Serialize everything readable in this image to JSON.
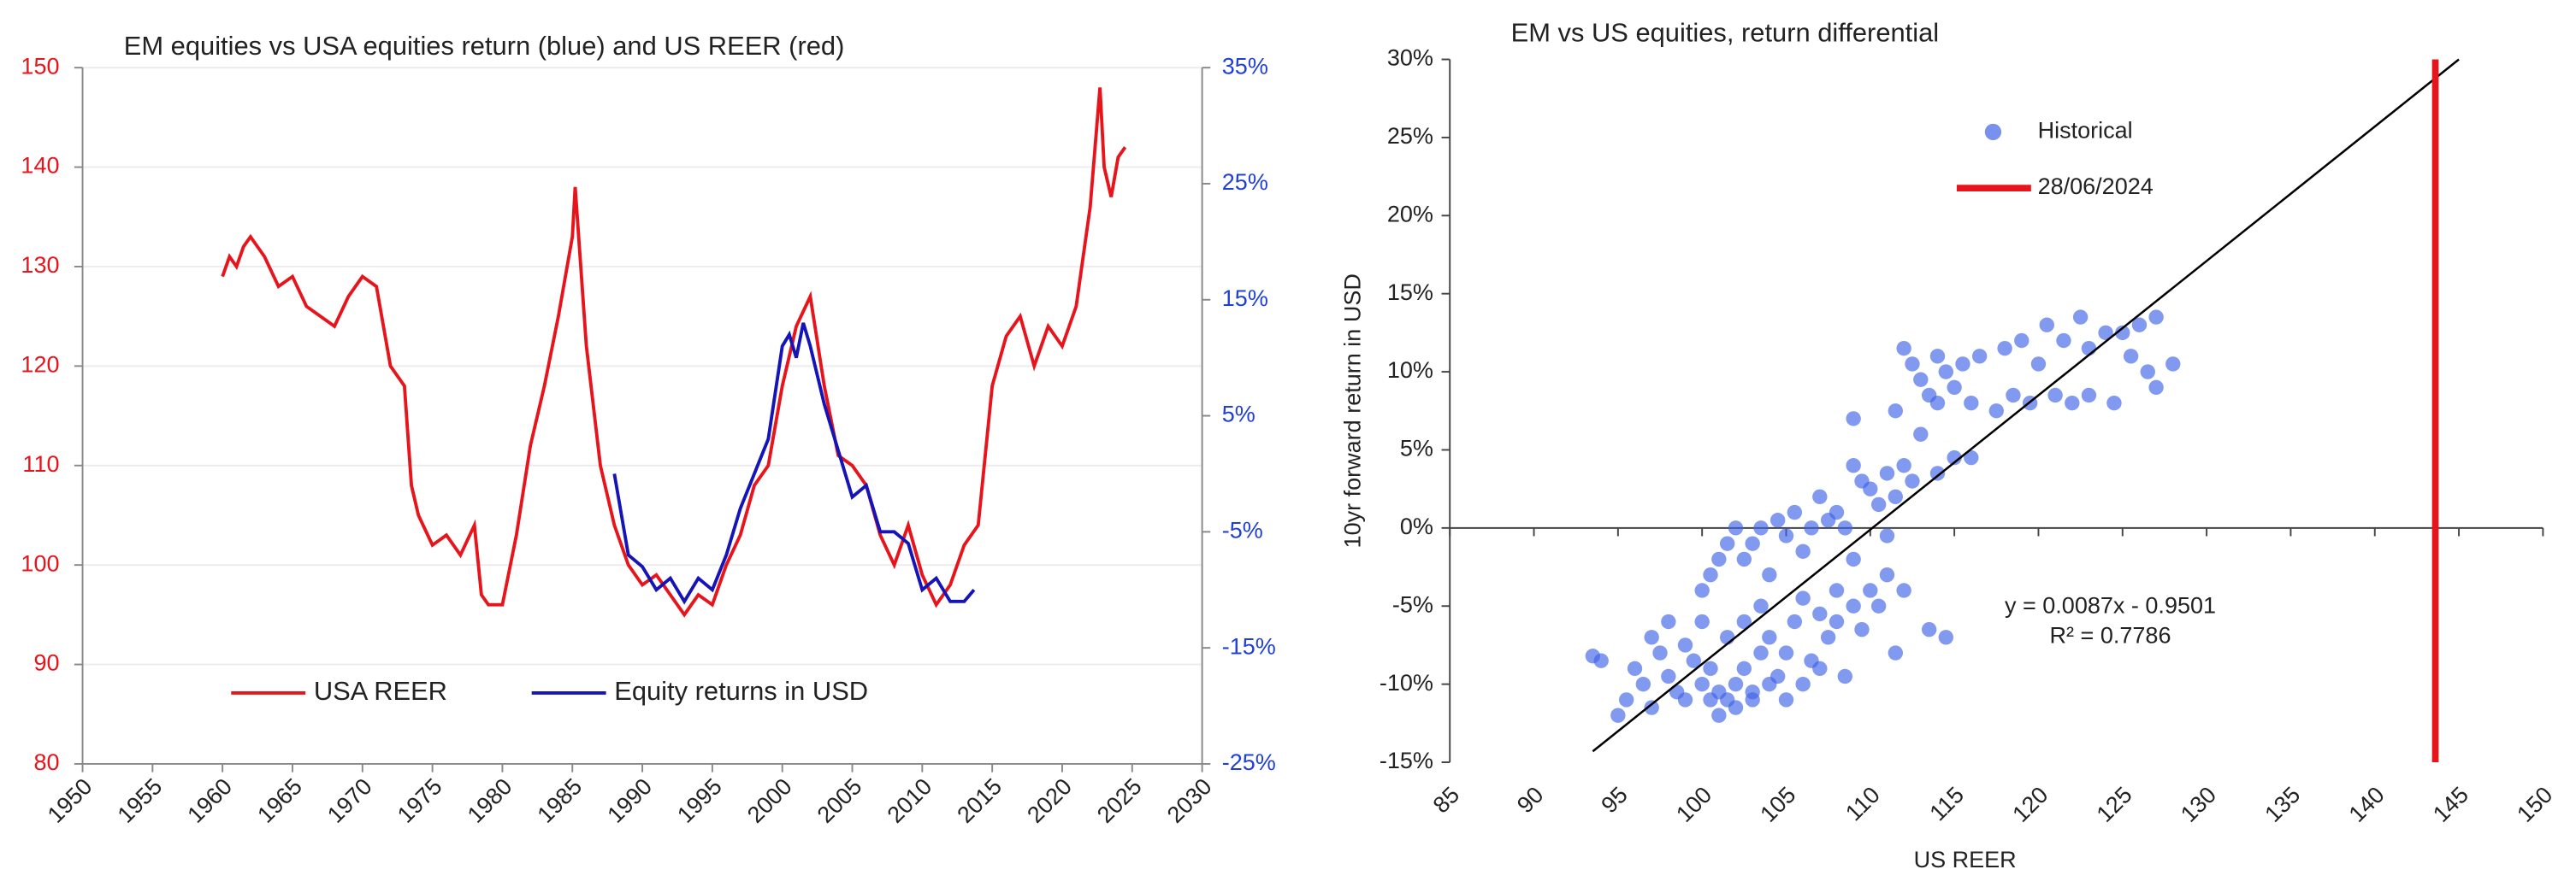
{
  "chart_data": [
    {
      "type": "line",
      "title": "EM equities vs USA equities return (blue) and US REER (red)",
      "xlim": [
        1950,
        2030
      ],
      "xticks": [
        1950,
        1955,
        1960,
        1965,
        1970,
        1975,
        1980,
        1985,
        1990,
        1995,
        2000,
        2005,
        2010,
        2015,
        2020,
        2025,
        2030
      ],
      "ylim": [
        80,
        150
      ],
      "yticks": [
        80,
        90,
        100,
        110,
        120,
        130,
        140,
        150
      ],
      "y2lim": [
        -25,
        35
      ],
      "y2ticks": [
        {
          "value": -25,
          "label": "-25%"
        },
        {
          "value": -15,
          "label": "-15%"
        },
        {
          "value": -5,
          "label": "-5%"
        },
        {
          "value": 5,
          "label": "5%"
        },
        {
          "value": 15,
          "label": "15%"
        },
        {
          "value": 25,
          "label": "25%"
        },
        {
          "value": 35,
          "label": "35%"
        }
      ],
      "grid": true,
      "series": [
        {
          "name": "USA REER",
          "color": "#e8141b",
          "axis": "y",
          "x": [
            1960,
            1960.5,
            1961,
            1961.5,
            1962,
            1963,
            1964,
            1965,
            1966,
            1967,
            1968,
            1969,
            1970,
            1971,
            1972,
            1973,
            1973.5,
            1974,
            1975,
            1976,
            1977,
            1978,
            1978.5,
            1979,
            1980,
            1981,
            1982,
            1983,
            1984,
            1985,
            1985.2,
            1986,
            1987,
            1988,
            1989,
            1990,
            1991,
            1992,
            1993,
            1994,
            1995,
            1996,
            1997,
            1998,
            1999,
            2000,
            2001,
            2002,
            2003,
            2004,
            2005,
            2006,
            2007,
            2008,
            2009,
            2010,
            2011,
            2012,
            2013,
            2014,
            2015,
            2016,
            2017,
            2018,
            2019,
            2020,
            2021,
            2022,
            2022.7,
            2023,
            2023.5,
            2024,
            2024.5
          ],
          "values": [
            129,
            131,
            130,
            132,
            133,
            131,
            128,
            129,
            126,
            125,
            124,
            127,
            129,
            128,
            120,
            118,
            108,
            105,
            102,
            103,
            101,
            104,
            97,
            96,
            96,
            103,
            112,
            118,
            125,
            133,
            138,
            122,
            110,
            104,
            100,
            98,
            99,
            97,
            95,
            97,
            96,
            100,
            103,
            108,
            110,
            118,
            124,
            127,
            118,
            111,
            110,
            108,
            103,
            100,
            104,
            99,
            96,
            98,
            102,
            104,
            118,
            123,
            125,
            120,
            124,
            122,
            126,
            136,
            148,
            140,
            137,
            141,
            142
          ]
        },
        {
          "name": "Equity returns in USD",
          "color": "#1414b8",
          "axis": "y2",
          "x": [
            1988,
            1989,
            1990,
            1991,
            1992,
            1993,
            1994,
            1995,
            1996,
            1997,
            1998,
            1999,
            2000,
            2000.5,
            2001,
            2001.5,
            2002,
            2003,
            2004,
            2005,
            2006,
            2007,
            2008,
            2009,
            2010,
            2011,
            2012,
            2013,
            2013.7
          ],
          "values": [
            0,
            -7,
            -8,
            -10,
            -9,
            -11,
            -9,
            -10,
            -7,
            -3,
            0,
            3,
            11,
            12,
            10,
            13,
            11,
            6,
            2,
            -2,
            -1,
            -5,
            -5,
            -6,
            -10,
            -9,
            -11,
            -11,
            -10
          ]
        }
      ]
    },
    {
      "type": "scatter",
      "title": "EM vs US equities, return differential",
      "x_label": "US REER",
      "y_label": "10yr forward return in USD",
      "xlim": [
        85,
        150
      ],
      "xticks": [
        85,
        90,
        95,
        100,
        105,
        110,
        115,
        120,
        125,
        130,
        135,
        140,
        145,
        150
      ],
      "ylim": [
        -15,
        30
      ],
      "yticks": [
        {
          "value": -15,
          "label": "-15%"
        },
        {
          "value": -10,
          "label": "-10%"
        },
        {
          "value": -5,
          "label": "-5%"
        },
        {
          "value": 0,
          "label": "0%"
        },
        {
          "value": 5,
          "label": "5%"
        },
        {
          "value": 10,
          "label": "10%"
        },
        {
          "value": 15,
          "label": "15%"
        },
        {
          "value": 20,
          "label": "20%"
        },
        {
          "value": 25,
          "label": "25%"
        },
        {
          "value": 30,
          "label": "30%"
        }
      ],
      "series": [
        {
          "name": "Historical",
          "color": "#3f63e8",
          "x": [
            93.5,
            94,
            95,
            95.5,
            96,
            96.5,
            97,
            97,
            97.5,
            98,
            98,
            98.5,
            99,
            99,
            99.5,
            100,
            100,
            100.5,
            100.5,
            101,
            101,
            101.5,
            101.5,
            102,
            102,
            102.5,
            102.5,
            103,
            103,
            103.5,
            103.5,
            104,
            104,
            104.5,
            105,
            105,
            105.5,
            106,
            106,
            106.5,
            107,
            107,
            107.5,
            108,
            108,
            108.5,
            109,
            109.5,
            110,
            110.5,
            111,
            111.5,
            112,
            113.5,
            114.5,
            100,
            100.5,
            101,
            101.5,
            102,
            102.5,
            103,
            103.5,
            104,
            104.5,
            105,
            105.5,
            106,
            106.5,
            107,
            107.5,
            108,
            108.5,
            109,
            109,
            109.5,
            110,
            110.5,
            111,
            111,
            111.5,
            112,
            112.5,
            113,
            114,
            115,
            116,
            109,
            111.5,
            112,
            112.5,
            113,
            113.5,
            114,
            114,
            114.5,
            115,
            115.5,
            116,
            116.5,
            117.5,
            118,
            118.5,
            119,
            119.5,
            120,
            120.5,
            121,
            121.5,
            122,
            122.5,
            123,
            123,
            124,
            124.5,
            125,
            125.5,
            126,
            126.5,
            127,
            127,
            128
          ],
          "values": [
            -8.2,
            -8.5,
            -12,
            -11,
            -9,
            -10,
            -7,
            -11.5,
            -8,
            -6,
            -9.5,
            -10.5,
            -7.5,
            -11,
            -8.5,
            -6,
            -10,
            -11,
            -9,
            -10.5,
            -12,
            -11,
            -7,
            -10,
            -11.5,
            -9,
            -6,
            -10.5,
            -11,
            -8,
            -5,
            -10,
            -7,
            -9.5,
            -11,
            -8,
            -6,
            -10,
            -4.5,
            -8.5,
            -9,
            -5.5,
            -7,
            -4,
            -6,
            -9.5,
            -5,
            -6.5,
            -4,
            -5,
            -3,
            -8,
            -4,
            -6.5,
            -7,
            -4,
            -3,
            -2,
            -1,
            0,
            -2,
            -1,
            0,
            -3,
            0.5,
            -0.5,
            1,
            -1.5,
            0,
            2,
            0.5,
            1,
            0,
            -2,
            4,
            3,
            2.5,
            1.5,
            -0.5,
            3.5,
            2,
            4,
            3,
            6,
            3.5,
            4.5,
            4.5,
            7,
            7.5,
            11.5,
            10.5,
            9.5,
            8.5,
            11,
            8,
            10,
            9,
            10.5,
            8,
            11,
            7.5,
            11.5,
            8.5,
            12,
            8,
            10.5,
            13,
            8.5,
            12,
            8,
            13.5,
            11.5,
            8.5,
            12.5,
            8,
            12.5,
            11,
            13,
            10,
            9,
            13.5,
            10.5
          ]
        }
      ],
      "trendline": {
        "x": [
          93.5,
          145
        ],
        "values": [
          -14.3,
          30
        ],
        "color": "#000000"
      },
      "vline": {
        "name": "28/06/2024",
        "x": 143.6,
        "color": "#e8141b"
      },
      "annotations": [
        "y = 0.0087x - 0.9501",
        "R² = 0.7786"
      ]
    }
  ]
}
